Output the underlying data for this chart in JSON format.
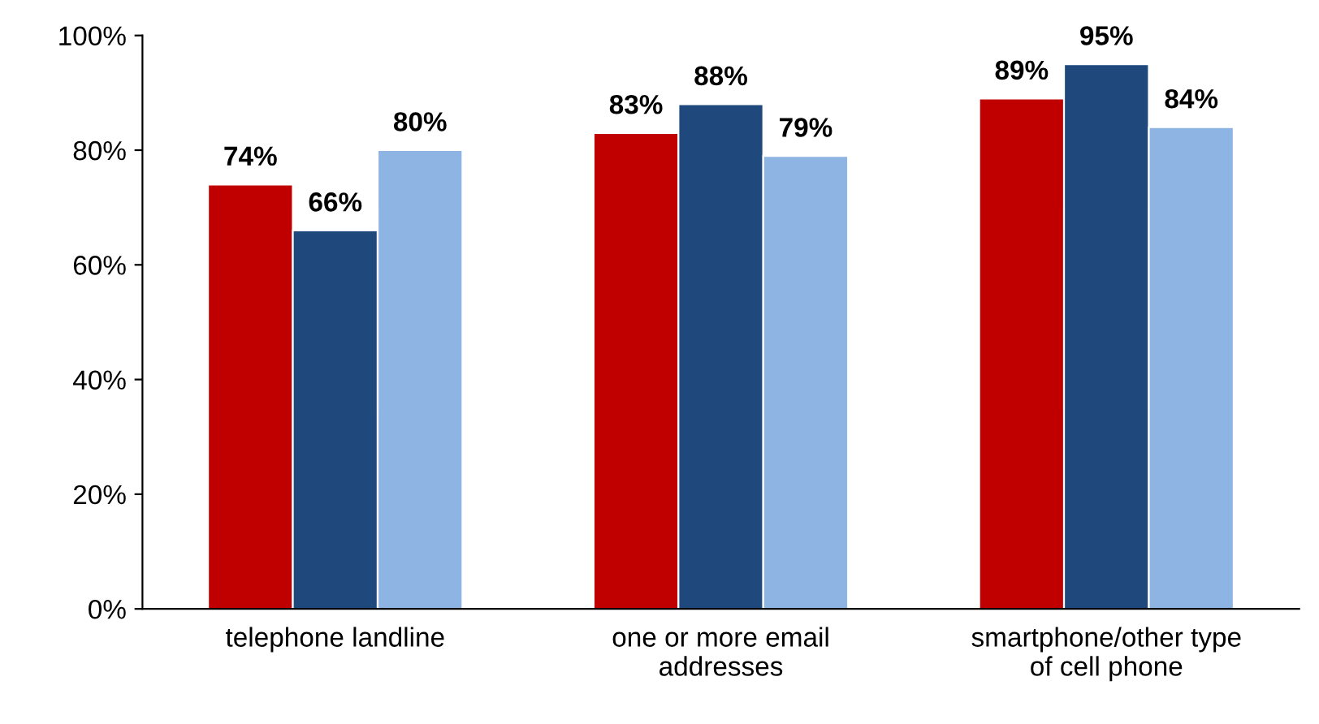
{
  "chart_data": {
    "type": "bar",
    "categories": [
      "telephone landline",
      "one or more email\naddresses",
      "smartphone/other type\nof cell phone"
    ],
    "series": [
      {
        "color": "#c00000",
        "values": [
          74,
          83,
          89
        ],
        "value_labels": [
          "74%",
          "83%",
          "89%"
        ]
      },
      {
        "color": "#1f497d",
        "values": [
          66,
          88,
          95
        ],
        "value_labels": [
          "66%",
          "88%",
          "95%"
        ]
      },
      {
        "color": "#8eb4e3",
        "values": [
          80,
          79,
          84
        ],
        "value_labels": [
          "80%",
          "79%",
          "84%"
        ]
      }
    ],
    "ylim": [
      0,
      100
    ],
    "yticks": [
      {
        "value": 0,
        "label": "0%"
      },
      {
        "value": 20,
        "label": "20%"
      },
      {
        "value": 40,
        "label": "40%"
      },
      {
        "value": 60,
        "label": "60%"
      },
      {
        "value": 80,
        "label": "80%"
      },
      {
        "value": 100,
        "label": "100%"
      }
    ],
    "grid": false
  }
}
